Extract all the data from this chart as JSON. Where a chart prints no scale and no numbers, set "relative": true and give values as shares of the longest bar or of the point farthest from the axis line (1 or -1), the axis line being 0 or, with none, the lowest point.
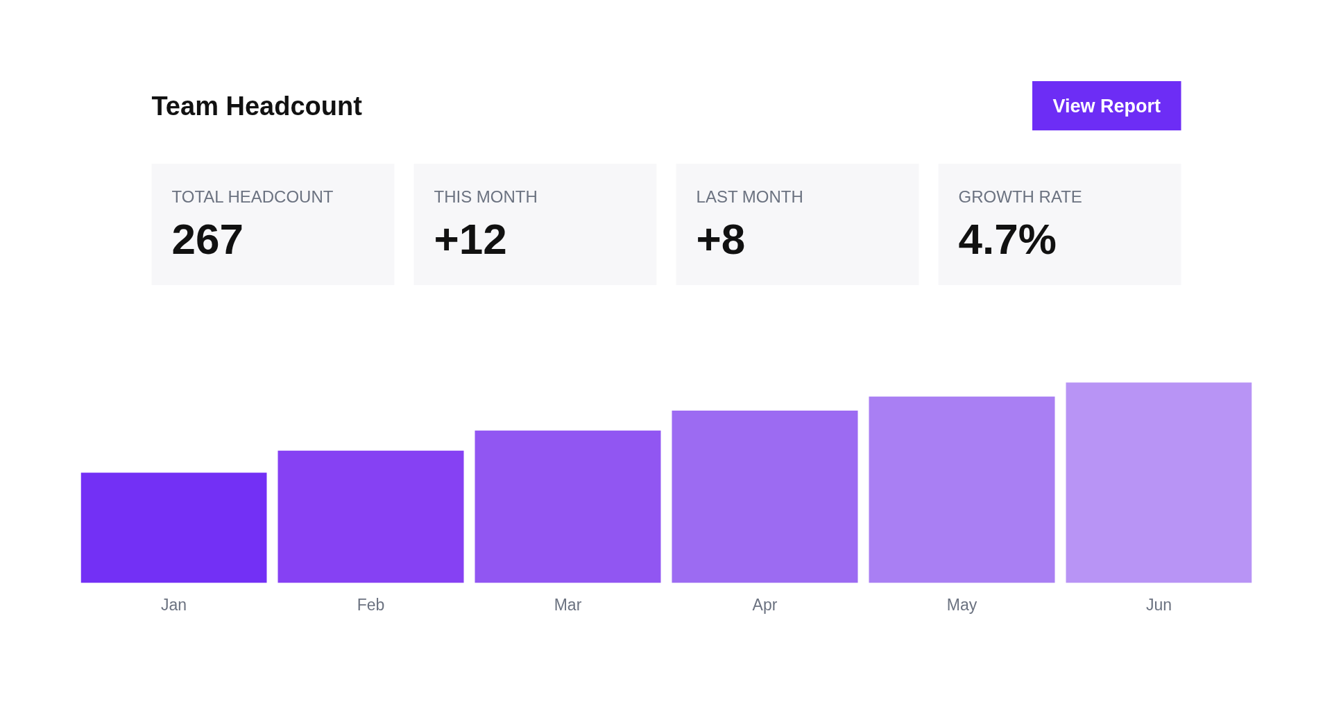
{
  "chart_data": [
    {
      "type": "other",
      "title": "Team Headcount",
      "annotations": [
        "View Report"
      ],
      "categories": [
        "TOTAL HEADCOUNT",
        "THIS MONTH",
        "LAST MONTH",
        "GROWTH RATE"
      ],
      "value_labels": [
        "267",
        "+12",
        "+8",
        "4.7%"
      ]
    },
    {
      "type": "bar",
      "relative": true,
      "categories": [
        "Jan",
        "Feb",
        "Mar",
        "Apr",
        "May",
        "Jun"
      ],
      "values": [
        0.55,
        0.66,
        0.76,
        0.86,
        0.93,
        1
      ],
      "colors": [
        "#7330f5",
        "#8641f3",
        "#9156f2",
        "#9c6bf2",
        "#a97ff3",
        "#b894f5"
      ]
    }
  ]
}
